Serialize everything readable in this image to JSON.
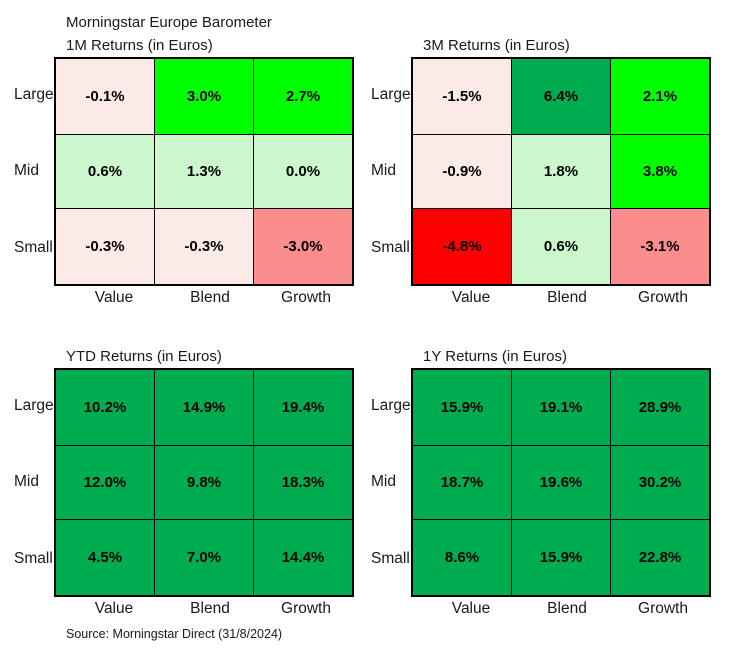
{
  "header": {
    "main_title": "Morningstar Europe Barometer"
  },
  "footer": {
    "source": "Source: Morningstar Direct (31/8/2024)"
  },
  "palette": {
    "strong_positive_green": "#00AC50",
    "bright_positive_green": "#00FF00",
    "mild_positive_green": "#CCF7CC",
    "mild_negative_pink": "#FCEAE6",
    "negative_salmon": "#FC8D8D",
    "strong_negative_red": "#FE0000",
    "border_black": "#000000"
  },
  "chart_data": [
    {
      "type": "heatmap",
      "title": "1M Returns (in Euros)",
      "rows": [
        "Large",
        "Mid",
        "Small"
      ],
      "columns": [
        "Value",
        "Blend",
        "Growth"
      ],
      "cells": [
        [
          {
            "label": "-0.1%",
            "value": -0.1,
            "color": "#FCEAE6"
          },
          {
            "label": "3.0%",
            "value": 3.0,
            "color": "#00FF00"
          },
          {
            "label": "2.7%",
            "value": 2.7,
            "color": "#00FF00"
          }
        ],
        [
          {
            "label": "0.6%",
            "value": 0.6,
            "color": "#CCF7CC"
          },
          {
            "label": "1.3%",
            "value": 1.3,
            "color": "#CCF7CC"
          },
          {
            "label": "0.0%",
            "value": 0.0,
            "color": "#CCF7CC"
          }
        ],
        [
          {
            "label": "-0.3%",
            "value": -0.3,
            "color": "#FCEAE6"
          },
          {
            "label": "-0.3%",
            "value": -0.3,
            "color": "#FCEAE6"
          },
          {
            "label": "-3.0%",
            "value": -3.0,
            "color": "#FC8D8D"
          }
        ]
      ]
    },
    {
      "type": "heatmap",
      "title": "3M Returns (in Euros)",
      "rows": [
        "Large",
        "Mid",
        "Small"
      ],
      "columns": [
        "Value",
        "Blend",
        "Growth"
      ],
      "cells": [
        [
          {
            "label": "-1.5%",
            "value": -1.5,
            "color": "#FCEAE6"
          },
          {
            "label": "6.4%",
            "value": 6.4,
            "color": "#00AC50"
          },
          {
            "label": "2.1%",
            "value": 2.1,
            "color": "#00FF00"
          }
        ],
        [
          {
            "label": "-0.9%",
            "value": -0.9,
            "color": "#FCEAE6"
          },
          {
            "label": "1.8%",
            "value": 1.8,
            "color": "#CCF7CC"
          },
          {
            "label": "3.8%",
            "value": 3.8,
            "color": "#00FF00"
          }
        ],
        [
          {
            "label": "-4.8%",
            "value": -4.8,
            "color": "#FE0000"
          },
          {
            "label": "0.6%",
            "value": 0.6,
            "color": "#CCF7CC"
          },
          {
            "label": "-3.1%",
            "value": -3.1,
            "color": "#FC8D8D"
          }
        ]
      ]
    },
    {
      "type": "heatmap",
      "title": "YTD Returns (in Euros)",
      "rows": [
        "Large",
        "Mid",
        "Small"
      ],
      "columns": [
        "Value",
        "Blend",
        "Growth"
      ],
      "cells": [
        [
          {
            "label": "10.2%",
            "value": 10.2,
            "color": "#00AC50"
          },
          {
            "label": "14.9%",
            "value": 14.9,
            "color": "#00AC50"
          },
          {
            "label": "19.4%",
            "value": 19.4,
            "color": "#00AC50"
          }
        ],
        [
          {
            "label": "12.0%",
            "value": 12.0,
            "color": "#00AC50"
          },
          {
            "label": "9.8%",
            "value": 9.8,
            "color": "#00AC50"
          },
          {
            "label": "18.3%",
            "value": 18.3,
            "color": "#00AC50"
          }
        ],
        [
          {
            "label": "4.5%",
            "value": 4.5,
            "color": "#00AC50"
          },
          {
            "label": "7.0%",
            "value": 7.0,
            "color": "#00AC50"
          },
          {
            "label": "14.4%",
            "value": 14.4,
            "color": "#00AC50"
          }
        ]
      ]
    },
    {
      "type": "heatmap",
      "title": "1Y Returns (in Euros)",
      "rows": [
        "Large",
        "Mid",
        "Small"
      ],
      "columns": [
        "Value",
        "Blend",
        "Growth"
      ],
      "cells": [
        [
          {
            "label": "15.9%",
            "value": 15.9,
            "color": "#00AC50"
          },
          {
            "label": "19.1%",
            "value": 19.1,
            "color": "#00AC50"
          },
          {
            "label": "28.9%",
            "value": 28.9,
            "color": "#00AC50"
          }
        ],
        [
          {
            "label": "18.7%",
            "value": 18.7,
            "color": "#00AC50"
          },
          {
            "label": "19.6%",
            "value": 19.6,
            "color": "#00AC50"
          },
          {
            "label": "30.2%",
            "value": 30.2,
            "color": "#00AC50"
          }
        ],
        [
          {
            "label": "8.6%",
            "value": 8.6,
            "color": "#00AC50"
          },
          {
            "label": "15.9%",
            "value": 15.9,
            "color": "#00AC50"
          },
          {
            "label": "22.8%",
            "value": 22.8,
            "color": "#00AC50"
          }
        ]
      ]
    }
  ]
}
